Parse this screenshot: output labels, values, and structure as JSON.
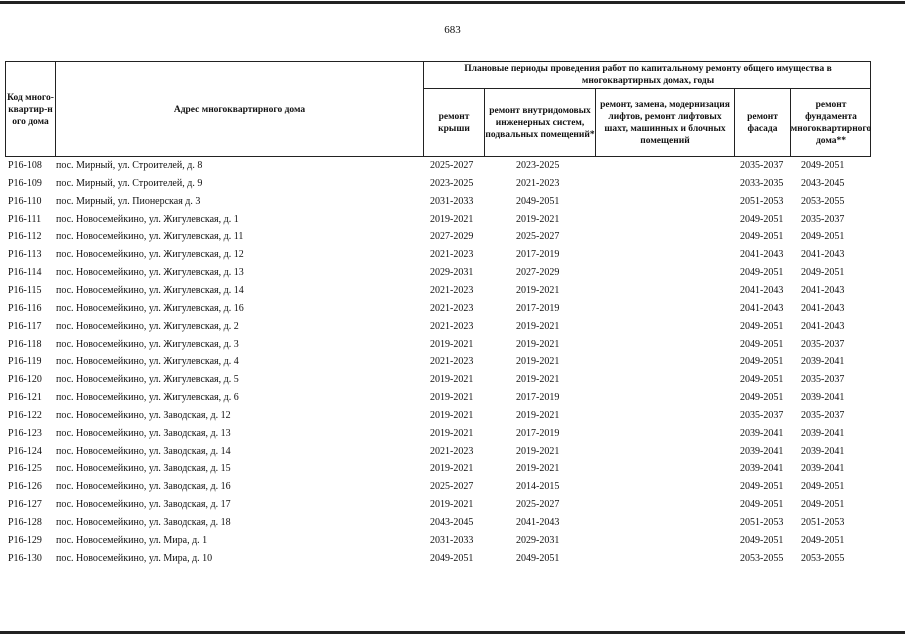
{
  "page_number": "683",
  "header": {
    "code": "Код много-квартир-ного дома",
    "address": "Адрес многоквартирного дома",
    "group": "Плановые периоды проведения работ по капитальному ремонту общего имущества в многоквартирных домах, годы",
    "roof": "ремонт крыши",
    "internal": "ремонт внутридомовых инженерных систем, подвальных помещений*",
    "lifts": "ремонт, замена, модернизация лифтов, ремонт лифтовых шахт, машинных и блочных помещений",
    "facade": "ремонт фасада",
    "foundation": "ремонт фундамента многоквартирного дома**"
  },
  "rows": [
    {
      "code": "Р16-108",
      "address": "пос. Мирный, ул. Строителей, д. 8",
      "roof": "2025-2027",
      "internal": "2023-2025",
      "lifts": "",
      "facade": "2035-2037",
      "foundation": "2049-2051"
    },
    {
      "code": "Р16-109",
      "address": "пос. Мирный, ул. Строителей, д. 9",
      "roof": "2023-2025",
      "internal": "2021-2023",
      "lifts": "",
      "facade": "2033-2035",
      "foundation": "2043-2045"
    },
    {
      "code": "Р16-110",
      "address": "пос. Мирный, ул. Пионерская д. 3",
      "roof": "2031-2033",
      "internal": "2049-2051",
      "lifts": "",
      "facade": "2051-2053",
      "foundation": "2053-2055"
    },
    {
      "code": "Р16-111",
      "address": "пос. Новосемейкино, ул. Жигулевская, д. 1",
      "roof": "2019-2021",
      "internal": "2019-2021",
      "lifts": "",
      "facade": "2049-2051",
      "foundation": "2035-2037"
    },
    {
      "code": "Р16-112",
      "address": "пос. Новосемейкино, ул. Жигулевская, д. 11",
      "roof": "2027-2029",
      "internal": "2025-2027",
      "lifts": "",
      "facade": "2049-2051",
      "foundation": "2049-2051"
    },
    {
      "code": "Р16-113",
      "address": "пос. Новосемейкино, ул. Жигулевская, д. 12",
      "roof": "2021-2023",
      "internal": "2017-2019",
      "lifts": "",
      "facade": "2041-2043",
      "foundation": "2041-2043"
    },
    {
      "code": "Р16-114",
      "address": "пос. Новосемейкино, ул. Жигулевская, д. 13",
      "roof": "2029-2031",
      "internal": "2027-2029",
      "lifts": "",
      "facade": "2049-2051",
      "foundation": "2049-2051"
    },
    {
      "code": "Р16-115",
      "address": "пос. Новосемейкино, ул. Жигулевская, д. 14",
      "roof": "2021-2023",
      "internal": "2019-2021",
      "lifts": "",
      "facade": "2041-2043",
      "foundation": "2041-2043"
    },
    {
      "code": "Р16-116",
      "address": "пос. Новосемейкино, ул. Жигулевская, д. 16",
      "roof": "2021-2023",
      "internal": "2017-2019",
      "lifts": "",
      "facade": "2041-2043",
      "foundation": "2041-2043"
    },
    {
      "code": "Р16-117",
      "address": "пос. Новосемейкино, ул. Жигулевская, д. 2",
      "roof": "2021-2023",
      "internal": "2019-2021",
      "lifts": "",
      "facade": "2049-2051",
      "foundation": "2041-2043"
    },
    {
      "code": "Р16-118",
      "address": "пос. Новосемейкино, ул. Жигулевская, д. 3",
      "roof": "2019-2021",
      "internal": "2019-2021",
      "lifts": "",
      "facade": "2049-2051",
      "foundation": "2035-2037"
    },
    {
      "code": "Р16-119",
      "address": "пос. Новосемейкино, ул. Жигулевская, д. 4",
      "roof": "2021-2023",
      "internal": "2019-2021",
      "lifts": "",
      "facade": "2049-2051",
      "foundation": "2039-2041"
    },
    {
      "code": "Р16-120",
      "address": "пос. Новосемейкино, ул. Жигулевская, д. 5",
      "roof": "2019-2021",
      "internal": "2019-2021",
      "lifts": "",
      "facade": "2049-2051",
      "foundation": "2035-2037"
    },
    {
      "code": "Р16-121",
      "address": "пос. Новосемейкино, ул. Жигулевская, д. 6",
      "roof": "2019-2021",
      "internal": "2017-2019",
      "lifts": "",
      "facade": "2049-2051",
      "foundation": "2039-2041"
    },
    {
      "code": "Р16-122",
      "address": "пос. Новосемейкино, ул. Заводская, д. 12",
      "roof": "2019-2021",
      "internal": "2019-2021",
      "lifts": "",
      "facade": "2035-2037",
      "foundation": "2035-2037"
    },
    {
      "code": "Р16-123",
      "address": "пос. Новосемейкино, ул. Заводская, д. 13",
      "roof": "2019-2021",
      "internal": "2017-2019",
      "lifts": "",
      "facade": "2039-2041",
      "foundation": "2039-2041"
    },
    {
      "code": "Р16-124",
      "address": "пос. Новосемейкино, ул. Заводская, д. 14",
      "roof": "2021-2023",
      "internal": "2019-2021",
      "lifts": "",
      "facade": "2039-2041",
      "foundation": "2039-2041"
    },
    {
      "code": "Р16-125",
      "address": "пос. Новосемейкино, ул. Заводская, д. 15",
      "roof": "2019-2021",
      "internal": "2019-2021",
      "lifts": "",
      "facade": "2039-2041",
      "foundation": "2039-2041"
    },
    {
      "code": "Р16-126",
      "address": "пос. Новосемейкино, ул. Заводская, д. 16",
      "roof": "2025-2027",
      "internal": "2014-2015",
      "lifts": "",
      "facade": "2049-2051",
      "foundation": "2049-2051"
    },
    {
      "code": "Р16-127",
      "address": "пос. Новосемейкино, ул. Заводская, д. 17",
      "roof": "2019-2021",
      "internal": "2025-2027",
      "lifts": "",
      "facade": "2049-2051",
      "foundation": "2049-2051"
    },
    {
      "code": "Р16-128",
      "address": "пос. Новосемейкино, ул. Заводская, д. 18",
      "roof": "2043-2045",
      "internal": "2041-2043",
      "lifts": "",
      "facade": "2051-2053",
      "foundation": "2051-2053"
    },
    {
      "code": "Р16-129",
      "address": "пос. Новосемейкино, ул. Мира, д. 1",
      "roof": "2031-2033",
      "internal": "2029-2031",
      "lifts": "",
      "facade": "2049-2051",
      "foundation": "2049-2051"
    },
    {
      "code": "Р16-130",
      "address": "пос. Новосемейкино, ул. Мира, д. 10",
      "roof": "2049-2051",
      "internal": "2049-2051",
      "lifts": "",
      "facade": "2053-2055",
      "foundation": "2053-2055"
    }
  ]
}
